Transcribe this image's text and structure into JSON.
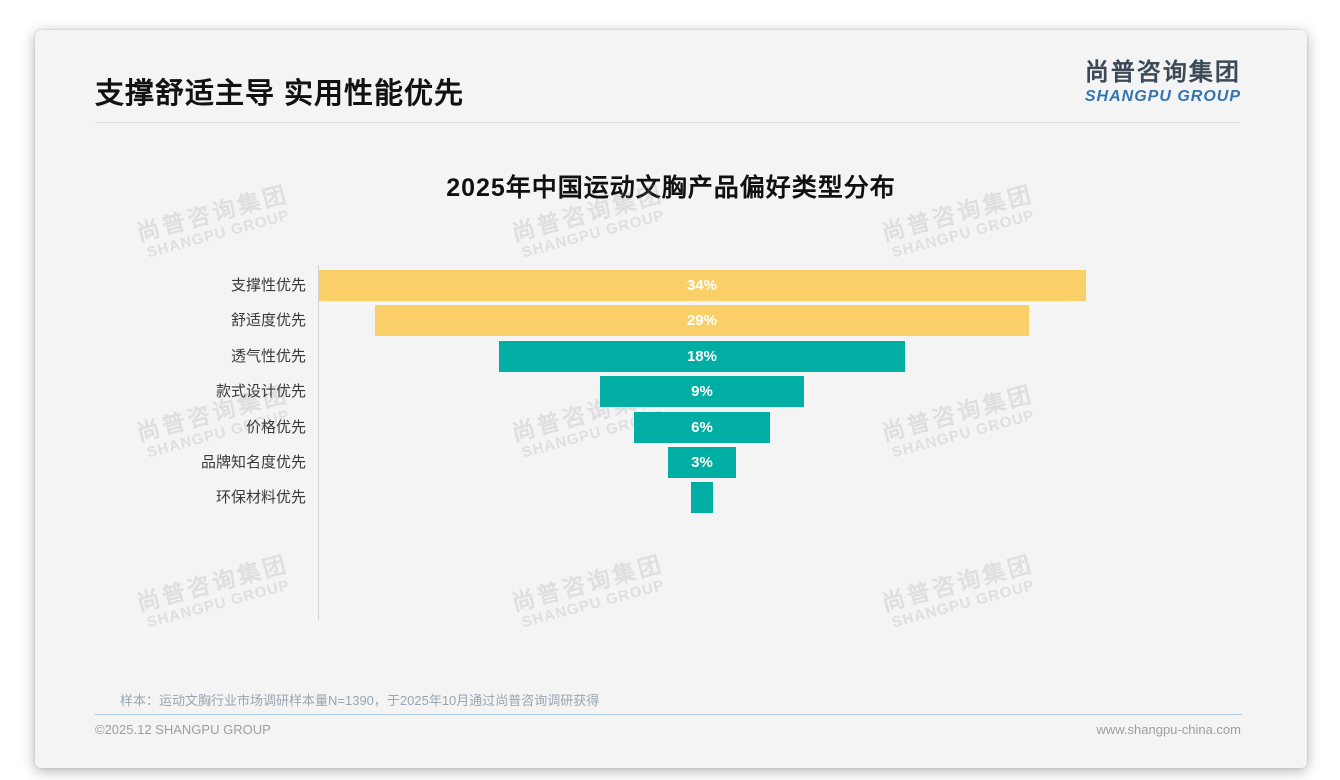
{
  "slide": {
    "title": "支撑舒适主导 实用性能优先",
    "logo": {
      "cn": "尚普咨询集团",
      "en": "SHANGPU GROUP"
    },
    "watermark": {
      "line1": "尚普咨询集团",
      "line2": "SHANGPU GROUP"
    },
    "note": "样本：运动文胸行业市场调研样本量N=1390，于2025年10月通过尚普咨询调研获得",
    "footer_left": "©2025.12 SHANGPU GROUP",
    "footer_right": "www.shangpu-china.com"
  },
  "colors": {
    "accent_yellow": "#fbcf68",
    "accent_teal": "#00aea4",
    "card_background": "#f4f4f5",
    "logo_blue": "#3273b1",
    "footer_divider_blue": "#aecbe3"
  },
  "chart_data": {
    "type": "bar",
    "variant": "horizontal-centered-funnel",
    "title": "2025年中国运动文胸产品偏好类型分布",
    "categories": [
      "支撑性优先",
      "舒适度优先",
      "透气性优先",
      "款式设计优先",
      "价格优先",
      "品牌知名度优先",
      "环保材料优先"
    ],
    "values": [
      34,
      29,
      18,
      9,
      6,
      3,
      1
    ],
    "labels": [
      "34%",
      "29%",
      "18%",
      "9%",
      "6%",
      "3%",
      ""
    ],
    "bar_colors": [
      "#fbcf68",
      "#fbcf68",
      "#00aea4",
      "#00aea4",
      "#00aea4",
      "#00aea4",
      "#00aea4"
    ],
    "unit": "%",
    "xlim": [
      0,
      34
    ],
    "grid": false,
    "legend": false,
    "value_labels_inside_bars": true
  }
}
